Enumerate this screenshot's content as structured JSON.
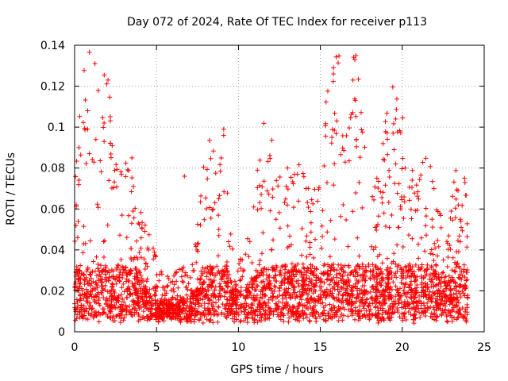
{
  "chart_data": {
    "type": "scatter",
    "title": "Day 072 of 2024, Rate Of TEC Index for receiver p113",
    "xlabel": "GPS time / hours",
    "ylabel": "ROTI / TECUs",
    "xlim": [
      0,
      25
    ],
    "ylim": [
      0,
      0.14
    ],
    "xticks": [
      0,
      5,
      10,
      15,
      20,
      25
    ],
    "xtick_labels": [
      "0",
      "5",
      "10",
      "15",
      "20",
      "25"
    ],
    "yticks": [
      0,
      0.02,
      0.04,
      0.06,
      0.08,
      0.1,
      0.12,
      0.14
    ],
    "ytick_labels": [
      "0",
      "0.02",
      "0.04",
      "0.06",
      "0.08",
      "0.1",
      "0.12",
      "0.14"
    ],
    "grid": true,
    "marker": "+",
    "color": "#ff0000",
    "x_data_range": [
      0,
      24
    ],
    "baseline_roti_range": [
      0.004,
      0.03
    ],
    "notable_points": [
      {
        "x": 0.1,
        "y": 0.062
      },
      {
        "x": 0.8,
        "y": 0.108
      },
      {
        "x": 0.8,
        "y": 0.099
      },
      {
        "x": 0.9,
        "y": 0.087
      },
      {
        "x": 1.3,
        "y": 0.094
      },
      {
        "x": 1.8,
        "y": 0.102
      },
      {
        "x": 1.8,
        "y": 0.093
      },
      {
        "x": 3.5,
        "y": 0.085
      },
      {
        "x": 6.7,
        "y": 0.076
      },
      {
        "x": 9.1,
        "y": 0.099
      },
      {
        "x": 9.1,
        "y": 0.096
      },
      {
        "x": 13.0,
        "y": 0.08
      },
      {
        "x": 15.8,
        "y": 0.129
      },
      {
        "x": 15.8,
        "y": 0.126
      },
      {
        "x": 15.7,
        "y": 0.095
      },
      {
        "x": 16.0,
        "y": 0.103
      },
      {
        "x": 17.2,
        "y": 0.094
      },
      {
        "x": 19.6,
        "y": 0.104
      },
      {
        "x": 19.5,
        "y": 0.089
      },
      {
        "x": 19.6,
        "y": 0.082
      },
      {
        "x": 23.8,
        "y": 0.075
      }
    ]
  }
}
